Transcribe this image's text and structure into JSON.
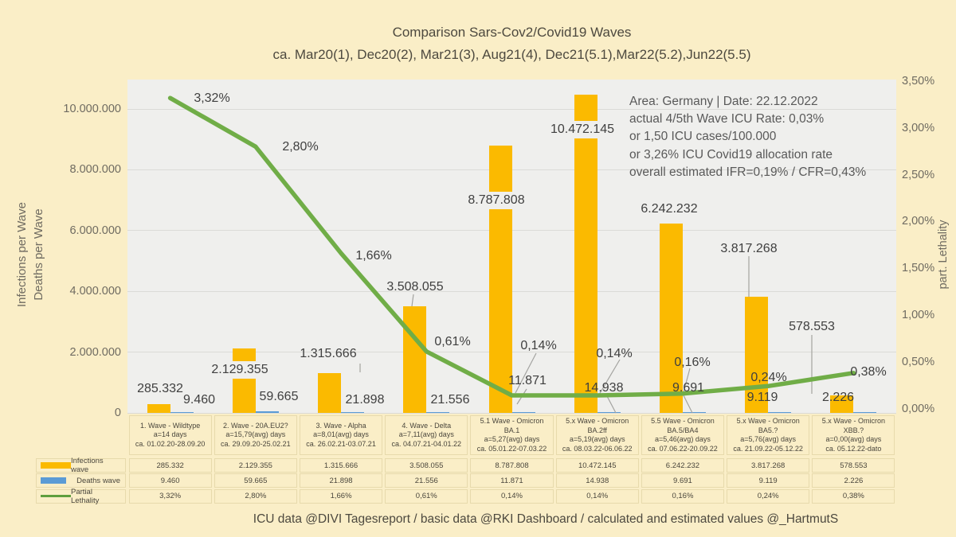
{
  "title": {
    "line1": "Comparison Sars-Cov2/Covid19 Waves",
    "line2": "ca. Mar20(1), Dec20(2), Mar21(3), Aug21(4), Dec21(5.1),Mar22(5.2),Jun22(5.5)"
  },
  "annotation": {
    "lines": [
      "Area: Germany | Date: 22.12.2022",
      "actual 4/5th Wave ICU Rate: 0,03%",
      "or 1,50 ICU cases/100.000",
      "or 3,26% ICU Covid19 allocation rate",
      "overall estimated IFR=0,19% / CFR=0,43%"
    ]
  },
  "left_axis": {
    "title_line1": "Infections per Wave",
    "title_line2": "Deaths per Wave",
    "ticks": [
      "10.000.000",
      "8.000.000",
      "6.000.000",
      "4.000.000",
      "2.000.000",
      "0"
    ],
    "tick_values": [
      10000000,
      8000000,
      6000000,
      4000000,
      2000000,
      0
    ]
  },
  "right_axis": {
    "title": "part. Lethality",
    "ticks": [
      "3,50%",
      "3,00%",
      "2,50%",
      "2,00%",
      "1,50%",
      "1,00%",
      "0,50%",
      "0,00%"
    ],
    "tick_values": [
      3.5,
      3.0,
      2.5,
      2.0,
      1.5,
      1.0,
      0.5,
      0.0
    ]
  },
  "legend": {
    "infections": "Infections wave",
    "deaths": "Deaths wave",
    "lethality": "Partial Lethality"
  },
  "footer": {
    "text": "ICU data @DIVI Tagesreport /  basic data @RKI Dashboard / calculated and estimated values  @_HartmutS"
  },
  "colors": {
    "bar_infections": "#FBBA00",
    "bar_deaths": "#5B9BD5",
    "line_lethality": "#70AD47",
    "page_bg": "#FAEEC7",
    "plot_bg": "#EFEFED"
  },
  "waves": [
    {
      "header_lines": [
        "1. Wave - Wildtype",
        "a=14 days",
        "ca. 01.02.20-28.09.20"
      ],
      "infections_label": "285.332",
      "deaths_label": "9.460",
      "lethality_label": "3,32%",
      "infections": 285332,
      "deaths": 9460,
      "lethality_pct": 3.32
    },
    {
      "header_lines": [
        "2. Wave - 20A.EU2?",
        "a=15,79(avg) days",
        "ca. 29.09.20-25.02.21"
      ],
      "infections_label": "2.129.355",
      "deaths_label": "59.665",
      "lethality_label": "2,80%",
      "infections": 2129355,
      "deaths": 59665,
      "lethality_pct": 2.8
    },
    {
      "header_lines": [
        "3. Wave - Alpha",
        "a=8,01(avg) days",
        "ca. 26.02.21-03.07.21"
      ],
      "infections_label": "1.315.666",
      "deaths_label": "21.898",
      "lethality_label": "1,66%",
      "infections": 1315666,
      "deaths": 21898,
      "lethality_pct": 1.66
    },
    {
      "header_lines": [
        "4. Wave - Delta",
        "a=7,11(avg) days",
        "ca. 04.07.21-04.01.22"
      ],
      "infections_label": "3.508.055",
      "deaths_label": "21.556",
      "lethality_label": "0,61%",
      "infections": 3508055,
      "deaths": 21556,
      "lethality_pct": 0.61
    },
    {
      "header_lines": [
        "5.1 Wave - Omicron",
        "BA.1",
        "a=5,27(avg) days",
        "ca. 05.01.22-07.03.22"
      ],
      "infections_label": "8.787.808",
      "deaths_label": "11.871",
      "lethality_label": "0,14%",
      "infections": 8787808,
      "deaths": 11871,
      "lethality_pct": 0.14
    },
    {
      "header_lines": [
        "5.x Wave - Omicron",
        "BA.2ff",
        "a=5,19(avg) days",
        "ca. 08.03.22-06.06.22"
      ],
      "infections_label": "10.472.145",
      "deaths_label": "14.938",
      "lethality_label": "0,14%",
      "infections": 10472145,
      "deaths": 14938,
      "lethality_pct": 0.14
    },
    {
      "header_lines": [
        "5.5 Wave - Omicron",
        "BA.5/BA4",
        "a=5,46(avg) days",
        "ca. 07.06.22-20.09.22"
      ],
      "infections_label": "6.242.232",
      "deaths_label": "9.691",
      "lethality_label": "0,16%",
      "infections": 6242232,
      "deaths": 9691,
      "lethality_pct": 0.16
    },
    {
      "header_lines": [
        "5.x Wave - Omicron",
        "BA5.?",
        "a=5,76(avg) days",
        "ca. 21.09.22-05.12.22"
      ],
      "infections_label": "3.817.268",
      "deaths_label": "9.119",
      "lethality_label": "0,24%",
      "infections": 3817268,
      "deaths": 9119,
      "lethality_pct": 0.24
    },
    {
      "header_lines": [
        "5.x Wave - Omicron",
        "XBB.?",
        "a=0,00(avg) days",
        "ca. 05.12.22-dato"
      ],
      "infections_label": "578.553",
      "deaths_label": "2.226",
      "lethality_label": "0,38%",
      "infections": 578553,
      "deaths": 2226,
      "lethality_pct": 0.38
    }
  ],
  "chart_data": {
    "type": "bar+line",
    "categories": [
      "1. Wave - Wildtype",
      "2. Wave - 20A.EU2?",
      "3. Wave - Alpha",
      "4. Wave - Delta",
      "5.1 Wave - Omicron BA.1",
      "5.x Wave - Omicron BA.2ff",
      "5.5 Wave - Omicron BA.5/BA4",
      "5.x Wave - Omicron BA5.?",
      "5.x Wave - Omicron XBB.?"
    ],
    "series": [
      {
        "name": "Infections wave",
        "type": "bar",
        "axis": "left",
        "values": [
          285332,
          2129355,
          1315666,
          3508055,
          8787808,
          10472145,
          6242232,
          3817268,
          578553
        ]
      },
      {
        "name": "Deaths wave",
        "type": "bar",
        "axis": "left",
        "values": [
          9460,
          59665,
          21898,
          21556,
          11871,
          14938,
          9691,
          9119,
          2226
        ]
      },
      {
        "name": "Partial Lethality",
        "type": "line",
        "axis": "right",
        "unit": "%",
        "values": [
          3.32,
          2.8,
          1.66,
          0.61,
          0.14,
          0.14,
          0.16,
          0.24,
          0.38
        ]
      }
    ],
    "title": "Comparison Sars-Cov2/Covid19 Waves",
    "subtitle": "ca. Mar20(1), Dec20(2), Mar21(3), Aug21(4), Dec21(5.1),Mar22(5.2),Jun22(5.5)",
    "left_axis_label": "Infections per Wave / Deaths per Wave",
    "right_axis_label": "part. Lethality",
    "left_ylim": [
      0,
      11000000
    ],
    "right_ylim": [
      0,
      3.5
    ],
    "grid": "horizontal",
    "legend_position": "table-left-bottom"
  }
}
